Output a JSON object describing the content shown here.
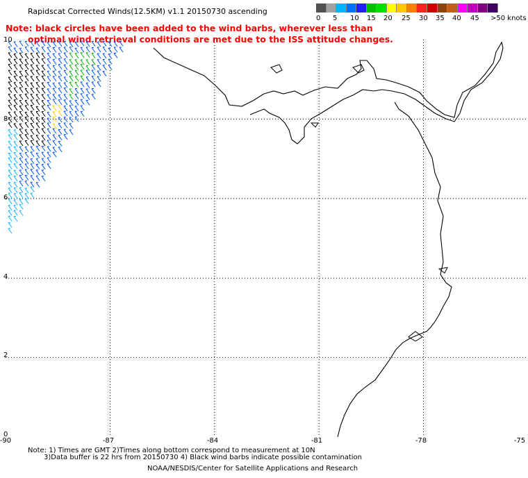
{
  "title": "Rapidscat Corrected Winds(12.5KM) v1.1 20150730 ascending",
  "note": {
    "line1": "Note: black circles have been added to the wind barbs, wherever less than",
    "line2": "optimal wind retrieval conditions are met due to the ISS attitude changes."
  },
  "legend": {
    "colors": [
      "#505050",
      "#a0a0a0",
      "#00b4ff",
      "#0070ff",
      "#2020ff",
      "#00c000",
      "#00e000",
      "#ffff00",
      "#ffc800",
      "#ff8000",
      "#ff2020",
      "#d00000",
      "#8b4513",
      "#c06020",
      "#ff00ff",
      "#c000c0",
      "#800080",
      "#400060"
    ],
    "labels": [
      "0",
      "5",
      "10",
      "15",
      "20",
      "25",
      "30",
      "35",
      "40",
      "45",
      ">50 knots"
    ]
  },
  "x_ticks": [
    "-90",
    "-87",
    "-84",
    "-81",
    "-78",
    "-75"
  ],
  "y_ticks": [
    "0",
    "2",
    "4",
    "6",
    "8",
    "10"
  ],
  "footnote": {
    "line1": "Note: 1) Times are GMT 2)Times along bottom correspond to measurement at 10N",
    "line2": "3)Data buffer is 22 hrs from 20150730 4) Black wind barbs indicate possible contamination"
  },
  "credit": "NOAA/NESDIS/Center for Satellite Applications and Research",
  "map": {
    "lon_range": [
      -90,
      -75
    ],
    "lat_range": [
      0,
      10
    ],
    "grid_lon": [
      -87,
      -84,
      -81,
      -78
    ],
    "grid_lat": [
      2,
      4,
      6,
      8
    ],
    "barb_colors": {
      "calm": "#000000",
      "light": "#00b4ff",
      "mid": "#0050ff",
      "fresh": "#00b000",
      "strong": "#ffcc00"
    }
  }
}
